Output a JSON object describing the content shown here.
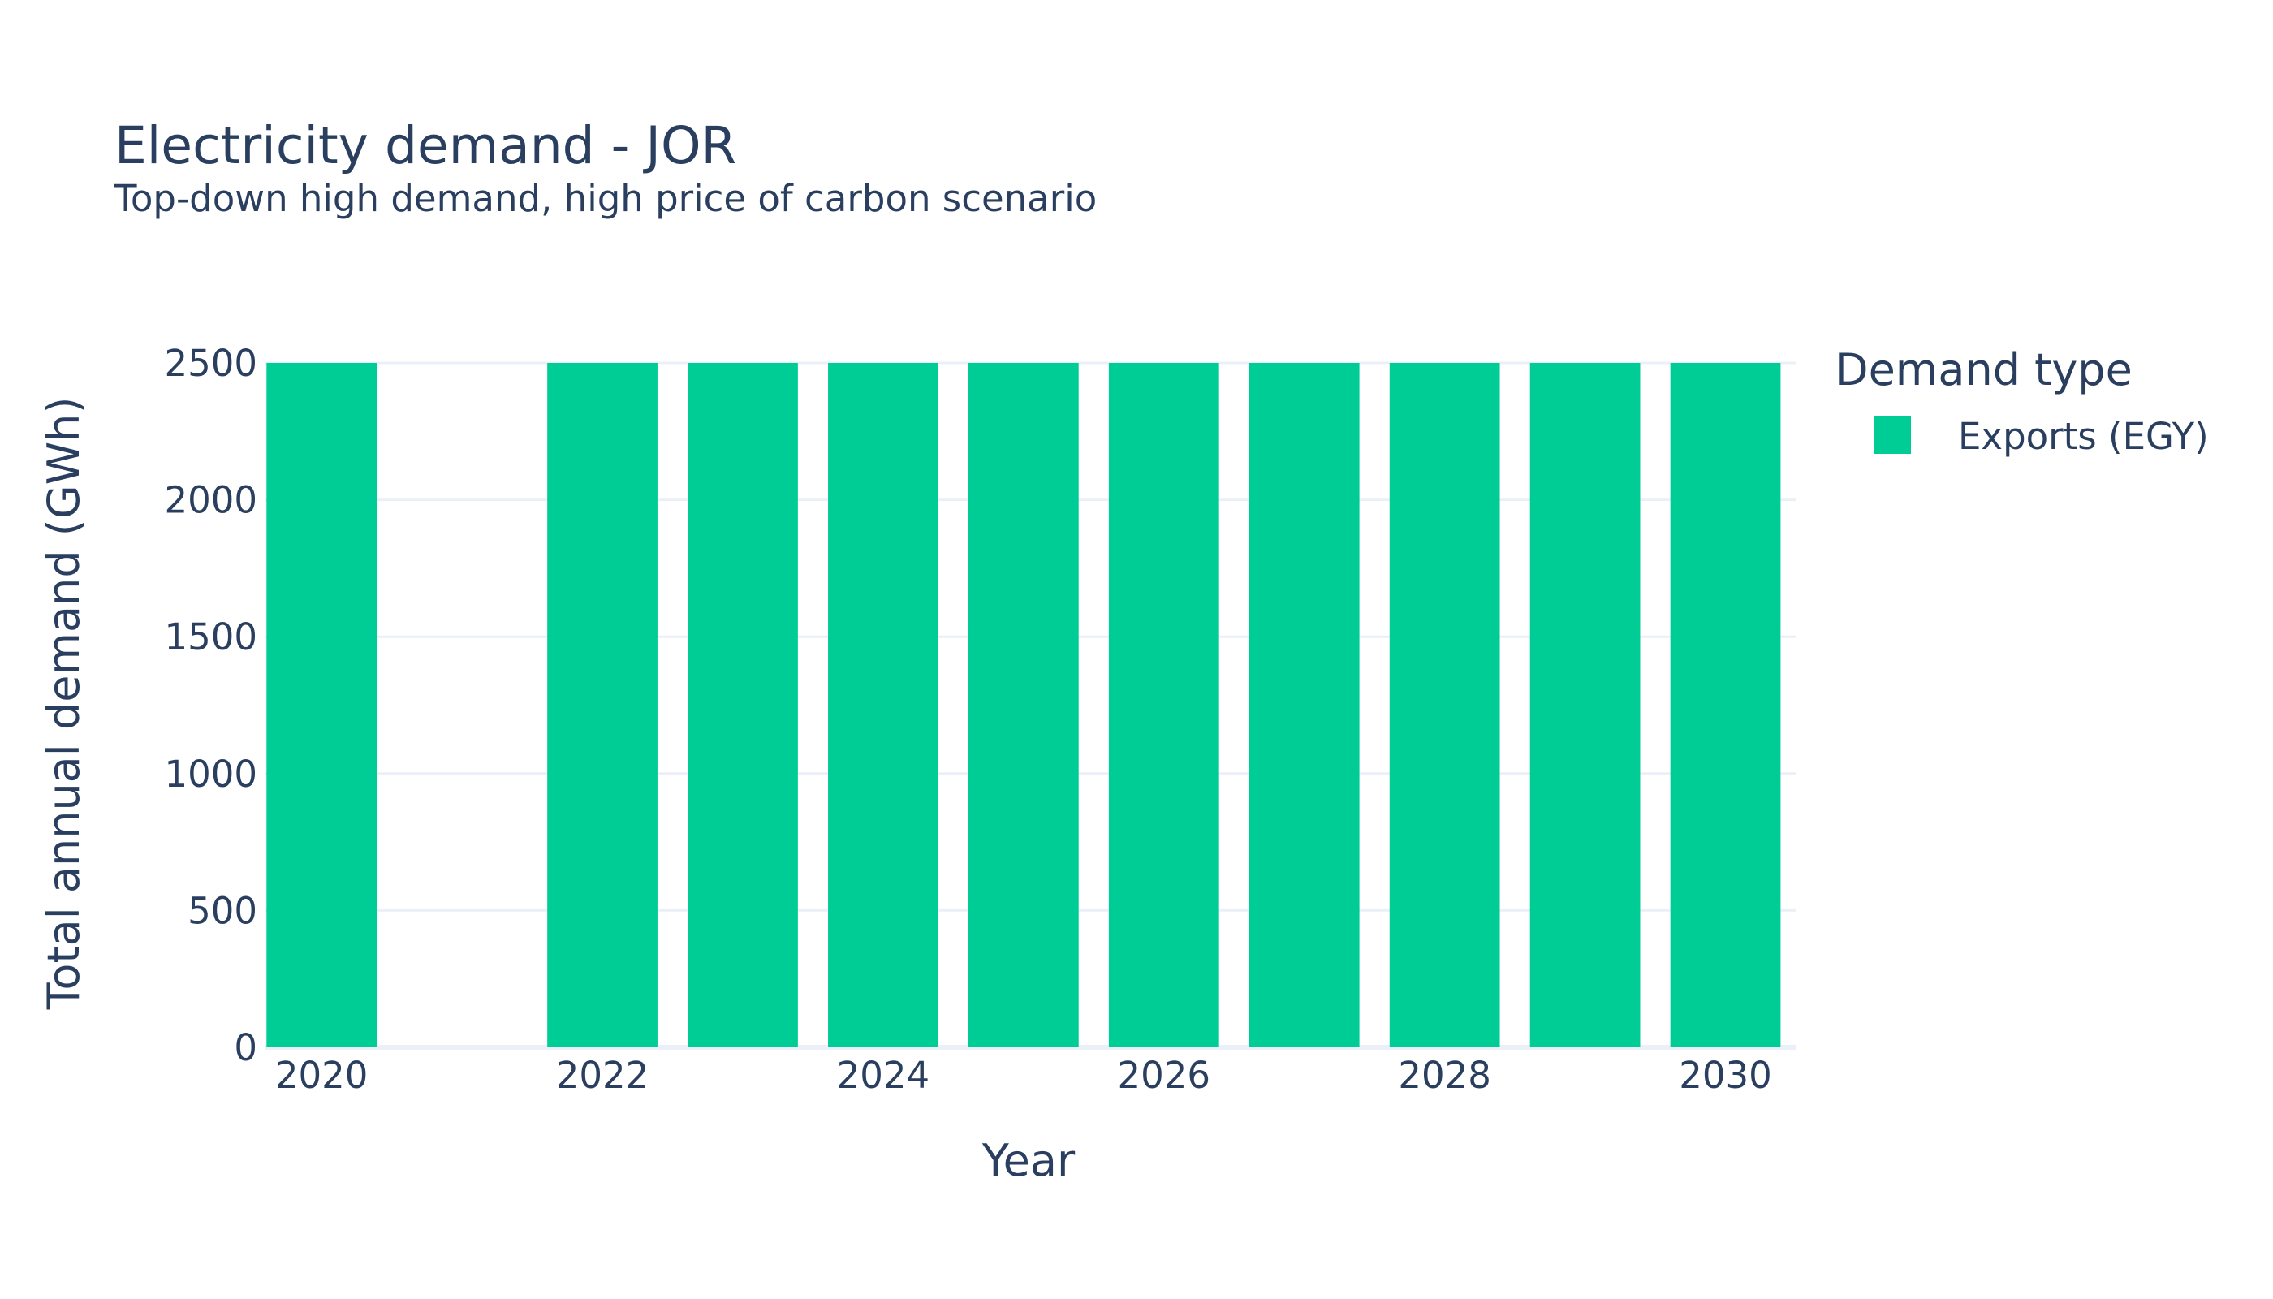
{
  "chart_data": {
    "type": "bar",
    "title": "Electricity demand - JOR",
    "subtitle": "Top-down high demand, high price of carbon scenario",
    "xlabel": "Year",
    "ylabel": "Total annual demand (GWh)",
    "x": [
      2020,
      2021,
      2022,
      2023,
      2024,
      2025,
      2026,
      2027,
      2028,
      2029,
      2030
    ],
    "xlim": [
      2019.6,
      2030.5
    ],
    "x_ticks": [
      2020,
      2022,
      2024,
      2026,
      2028,
      2030
    ],
    "ylim": [
      0,
      2500
    ],
    "y_ticks": [
      0,
      500,
      1000,
      1500,
      2000,
      2500
    ],
    "grid": true,
    "legend_title": "Demand type",
    "legend_position": "right",
    "series": [
      {
        "name": "Exports (EGY)",
        "color": "#00cc96",
        "values": [
          2500,
          0,
          2500,
          2500,
          2500,
          2500,
          2500,
          2500,
          2500,
          2500,
          2500
        ]
      }
    ]
  }
}
